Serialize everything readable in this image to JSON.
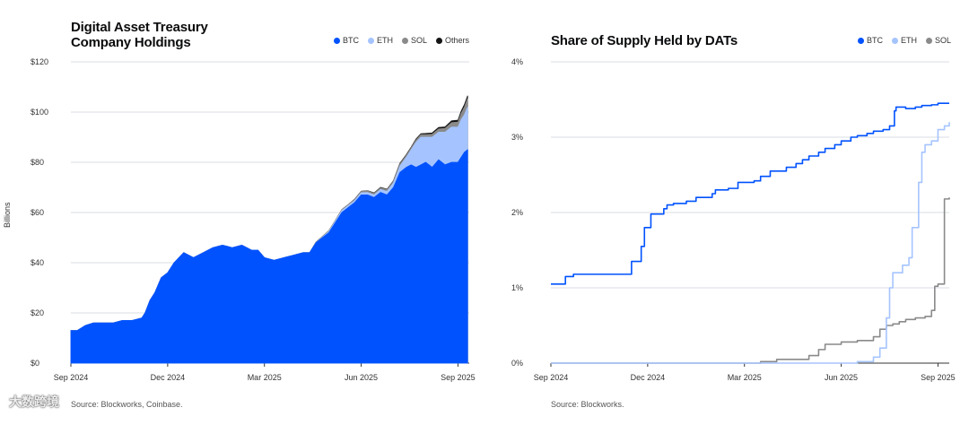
{
  "chart_data": [
    {
      "type": "area",
      "stacked": true,
      "title_lines": [
        "Digital Asset Treasury",
        "Company Holdings"
      ],
      "ylabel": "Billions",
      "xlabel": "",
      "ylim": [
        0,
        120
      ],
      "y_ticks": [
        "$0",
        "$20",
        "$40",
        "$60",
        "$80",
        "$100",
        "$120"
      ],
      "y_tick_values": [
        0,
        20,
        40,
        60,
        80,
        100,
        120
      ],
      "x_ticks": [
        "Sep 2024",
        "Dec 2024",
        "Mar 2025",
        "Jun 2025",
        "Sep 2025"
      ],
      "x_tick_values": [
        0,
        3,
        6,
        9,
        12
      ],
      "xlim": [
        0,
        12.35
      ],
      "grid": true,
      "legend_position": "top-right",
      "source": "Source: Blockworks, Coinbase.",
      "x": [
        0,
        0.2,
        0.45,
        0.7,
        1.0,
        1.3,
        1.6,
        1.9,
        2.2,
        2.3,
        2.45,
        2.6,
        2.8,
        3.0,
        3.2,
        3.5,
        3.8,
        4.1,
        4.4,
        4.7,
        5.0,
        5.3,
        5.6,
        5.8,
        6.0,
        6.3,
        6.6,
        6.9,
        7.2,
        7.4,
        7.6,
        7.8,
        8.0,
        8.2,
        8.4,
        8.6,
        8.8,
        9.0,
        9.2,
        9.4,
        9.6,
        9.8,
        10.0,
        10.2,
        10.4,
        10.55,
        10.7,
        10.85,
        11.0,
        11.2,
        11.4,
        11.6,
        11.8,
        12.0,
        12.1,
        12.2,
        12.3
      ],
      "series": [
        {
          "name": "BTC",
          "color": "#0052ff",
          "values": [
            13,
            13,
            15,
            16,
            16,
            16,
            17,
            17,
            18,
            20,
            25,
            28,
            34,
            36,
            40,
            44,
            42,
            44,
            46,
            47,
            46,
            47,
            45,
            45,
            42,
            41,
            42,
            43,
            44,
            44,
            48,
            50,
            52,
            56,
            60,
            62,
            64,
            67,
            67,
            66,
            68,
            67,
            70,
            76,
            78,
            79,
            78,
            79,
            80,
            78,
            81,
            79,
            80,
            80,
            82,
            84,
            85
          ]
        },
        {
          "name": "ETH",
          "color": "#a5c4ff",
          "values": [
            0,
            0,
            0,
            0,
            0,
            0,
            0,
            0,
            0,
            0,
            0,
            0,
            0,
            0,
            0,
            0,
            0,
            0,
            0,
            0,
            0,
            0,
            0,
            0,
            0,
            0,
            0,
            0,
            0,
            0,
            0,
            0.3,
            0.5,
            0.6,
            0.8,
            0.8,
            0.8,
            0.9,
            1.0,
            1.0,
            1.2,
            1.4,
            1.8,
            2.5,
            4,
            6,
            10,
            11,
            10,
            12,
            11,
            13,
            14,
            14,
            15,
            15,
            17
          ]
        },
        {
          "name": "SOL",
          "color": "#8a8a8a",
          "values": [
            0,
            0,
            0,
            0,
            0,
            0,
            0,
            0,
            0,
            0,
            0,
            0,
            0,
            0,
            0,
            0,
            0,
            0,
            0,
            0,
            0,
            0,
            0,
            0,
            0,
            0,
            0,
            0,
            0,
            0,
            0.2,
            0.2,
            0.3,
            0.3,
            0.4,
            0.4,
            0.5,
            0.5,
            0.6,
            0.6,
            0.6,
            0.7,
            0.7,
            0.8,
            0.8,
            0.8,
            0.9,
            1.0,
            1.0,
            1.2,
            1.3,
            1.5,
            1.8,
            2.0,
            2.5,
            3.0,
            3.5
          ]
        },
        {
          "name": "Others",
          "color": "#141414",
          "values": [
            0,
            0,
            0,
            0,
            0,
            0,
            0,
            0,
            0,
            0,
            0,
            0,
            0,
            0,
            0,
            0,
            0,
            0,
            0,
            0,
            0,
            0,
            0,
            0,
            0,
            0,
            0,
            0,
            0,
            0,
            0,
            0,
            0,
            0,
            0,
            0,
            0.1,
            0.1,
            0.1,
            0.2,
            0.2,
            0.2,
            0.2,
            0.3,
            0.3,
            0.3,
            0.4,
            0.4,
            0.5,
            0.5,
            0.6,
            0.6,
            0.7,
            0.8,
            0.9,
            1.0,
            1.0
          ]
        }
      ]
    },
    {
      "type": "line",
      "title": "Share of Supply Held by DATs",
      "ylabel": "",
      "xlabel": "",
      "ylim": [
        0,
        4
      ],
      "y_ticks": [
        "0%",
        "1%",
        "2%",
        "3%",
        "4%"
      ],
      "y_tick_values": [
        0,
        1,
        2,
        3,
        4
      ],
      "x_ticks": [
        "Sep 2024",
        "Dec 2024",
        "Mar 2025",
        "Jun 2025",
        "Sep 2025"
      ],
      "x_tick_values": [
        0,
        3,
        6,
        9,
        12
      ],
      "xlim": [
        0,
        12.35
      ],
      "grid": true,
      "legend_position": "top-right",
      "source": "Source: Blockworks.",
      "series": [
        {
          "name": "BTC",
          "color": "#0052ff",
          "x": [
            0,
            0.35,
            0.45,
            0.7,
            1.0,
            1.5,
            2.0,
            2.45,
            2.5,
            2.8,
            2.9,
            3.1,
            3.5,
            3.6,
            3.8,
            4.0,
            4.2,
            4.5,
            5.0,
            5.1,
            5.5,
            5.8,
            6.0,
            6.3,
            6.5,
            6.8,
            7.0,
            7.3,
            7.6,
            7.8,
            8.0,
            8.3,
            8.5,
            8.8,
            9.0,
            9.3,
            9.5,
            9.8,
            10.0,
            10.3,
            10.5,
            10.65,
            10.7,
            11.0,
            11.3,
            11.5,
            11.8,
            12.0,
            12.35
          ],
          "values": [
            1.05,
            1.05,
            1.15,
            1.18,
            1.18,
            1.18,
            1.18,
            1.18,
            1.35,
            1.55,
            1.8,
            1.98,
            2.05,
            2.1,
            2.12,
            2.12,
            2.15,
            2.2,
            2.25,
            2.3,
            2.32,
            2.4,
            2.4,
            2.42,
            2.48,
            2.55,
            2.55,
            2.6,
            2.65,
            2.7,
            2.75,
            2.8,
            2.85,
            2.9,
            2.95,
            3.0,
            3.02,
            3.05,
            3.08,
            3.1,
            3.15,
            3.35,
            3.4,
            3.38,
            3.4,
            3.42,
            3.43,
            3.45,
            3.45
          ]
        },
        {
          "name": "ETH",
          "color": "#a5c4ff",
          "x": [
            0,
            1.0,
            2.0,
            3.0,
            4.0,
            5.0,
            6.0,
            7.0,
            8.0,
            9.0,
            9.5,
            10.0,
            10.2,
            10.4,
            10.5,
            10.6,
            10.75,
            10.9,
            11.1,
            11.2,
            11.4,
            11.5,
            11.6,
            11.8,
            12.0,
            12.2,
            12.35
          ],
          "values": [
            0.0,
            0.0,
            0.0,
            0.0,
            0.0,
            0.0,
            0.0,
            0.0,
            0.0,
            0.0,
            0.02,
            0.08,
            0.2,
            0.6,
            1.0,
            1.2,
            1.2,
            1.3,
            1.4,
            1.8,
            2.4,
            2.8,
            2.9,
            2.95,
            3.1,
            3.15,
            3.2
          ]
        },
        {
          "name": "SOL",
          "color": "#8a8a8a",
          "x": [
            0,
            1.0,
            2.0,
            3.0,
            4.0,
            5.0,
            6.0,
            6.5,
            7.0,
            7.5,
            7.8,
            8.0,
            8.3,
            8.5,
            9.0,
            9.5,
            9.8,
            10.0,
            10.2,
            10.4,
            10.6,
            10.8,
            11.0,
            11.3,
            11.5,
            11.6,
            11.8,
            11.9,
            12.0,
            12.05,
            12.2,
            12.35
          ],
          "values": [
            0.0,
            0.0,
            0.0,
            0.0,
            0.0,
            0.0,
            0.0,
            0.02,
            0.05,
            0.05,
            0.05,
            0.1,
            0.18,
            0.25,
            0.28,
            0.3,
            0.3,
            0.35,
            0.45,
            0.5,
            0.52,
            0.55,
            0.58,
            0.6,
            0.6,
            0.62,
            0.7,
            1.02,
            1.05,
            1.05,
            2.18,
            2.2
          ]
        }
      ]
    }
  ],
  "watermark": "大数跨境"
}
